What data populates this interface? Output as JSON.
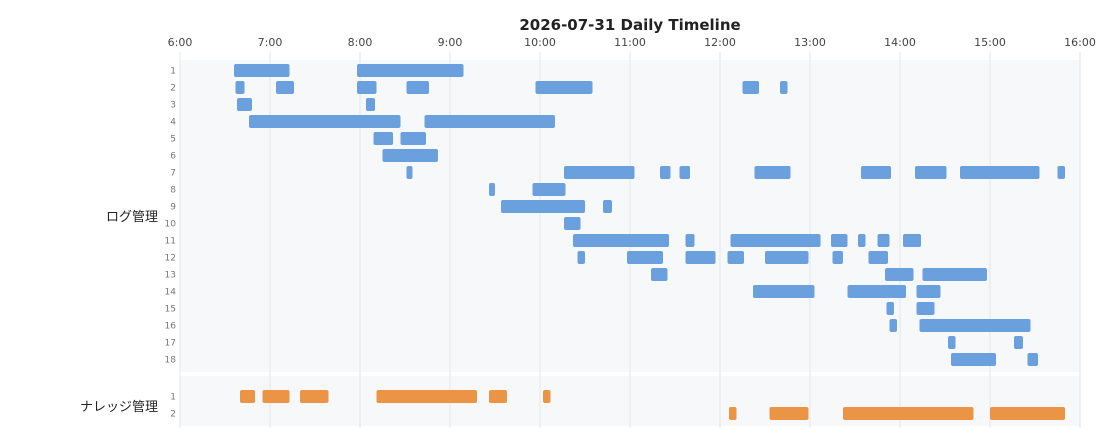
{
  "chart_data": {
    "type": "timeline",
    "title": "2026-07-31 Daily Timeline",
    "x_ticks": [
      "6:00",
      "7:00",
      "8:00",
      "9:00",
      "10:00",
      "11:00",
      "12:00",
      "13:00",
      "14:00",
      "15:00",
      "16:00"
    ],
    "x_range": [
      "6:00",
      "16:00"
    ],
    "colors": {
      "ログ管理": "#6aa0dd",
      "ナレッジ管理": "#ec9446"
    },
    "groups": [
      {
        "name": "ログ管理",
        "rows": [
          {
            "label": "1",
            "tasks": [
              [
                "6:36",
                "7:13"
              ],
              [
                "7:58",
                "9:09"
              ]
            ]
          },
          {
            "label": "2",
            "tasks": [
              [
                "6:37",
                "6:43"
              ],
              [
                "7:04",
                "7:16"
              ],
              [
                "7:58",
                "8:11"
              ],
              [
                "8:31",
                "8:46"
              ],
              [
                "9:57",
                "10:35"
              ],
              [
                "12:15",
                "12:26"
              ],
              [
                "12:40",
                "12:45"
              ]
            ]
          },
          {
            "label": "3",
            "tasks": [
              [
                "6:38",
                "6:48"
              ],
              [
                "8:04",
                "8:10"
              ]
            ]
          },
          {
            "label": "4",
            "tasks": [
              [
                "6:46",
                "8:27"
              ],
              [
                "8:43",
                "10:10"
              ]
            ]
          },
          {
            "label": "5",
            "tasks": [
              [
                "8:09",
                "8:22"
              ],
              [
                "8:27",
                "8:44"
              ]
            ]
          },
          {
            "label": "6",
            "tasks": [
              [
                "8:15",
                "8:52"
              ]
            ]
          },
          {
            "label": "7",
            "tasks": [
              [
                "8:31",
                "8:35"
              ],
              [
                "10:16",
                "11:03"
              ],
              [
                "11:20",
                "11:27"
              ],
              [
                "11:33",
                "11:40"
              ],
              [
                "12:23",
                "12:47"
              ],
              [
                "13:34",
                "13:54"
              ],
              [
                "14:10",
                "14:31"
              ],
              [
                "14:40",
                "15:33"
              ],
              [
                "15:45",
                "15:50"
              ]
            ]
          },
          {
            "label": "8",
            "tasks": [
              [
                "9:26",
                "9:30"
              ],
              [
                "9:55",
                "10:17"
              ]
            ]
          },
          {
            "label": "9",
            "tasks": [
              [
                "9:34",
                "10:30"
              ],
              [
                "10:42",
                "10:48"
              ]
            ]
          },
          {
            "label": "10",
            "tasks": [
              [
                "10:16",
                "10:27"
              ]
            ]
          },
          {
            "label": "11",
            "tasks": [
              [
                "10:22",
                "11:26"
              ],
              [
                "11:37",
                "11:43"
              ],
              [
                "12:07",
                "13:07"
              ],
              [
                "13:14",
                "13:25"
              ],
              [
                "13:32",
                "13:37"
              ],
              [
                "13:45",
                "13:53"
              ],
              [
                "14:02",
                "14:14"
              ]
            ]
          },
          {
            "label": "12",
            "tasks": [
              [
                "10:25",
                "10:30"
              ],
              [
                "10:58",
                "11:22"
              ],
              [
                "11:37",
                "11:57"
              ],
              [
                "12:05",
                "12:16"
              ],
              [
                "12:30",
                "12:59"
              ],
              [
                "13:15",
                "13:22"
              ],
              [
                "13:39",
                "13:52"
              ]
            ]
          },
          {
            "label": "13",
            "tasks": [
              [
                "11:14",
                "11:25"
              ],
              [
                "13:50",
                "14:09"
              ],
              [
                "14:15",
                "14:58"
              ]
            ]
          },
          {
            "label": "14",
            "tasks": [
              [
                "12:22",
                "13:03"
              ],
              [
                "13:25",
                "14:04"
              ],
              [
                "14:11",
                "14:27"
              ]
            ]
          },
          {
            "label": "15",
            "tasks": [
              [
                "13:51",
                "13:56"
              ],
              [
                "14:11",
                "14:23"
              ]
            ]
          },
          {
            "label": "16",
            "tasks": [
              [
                "13:53",
                "13:58"
              ],
              [
                "14:13",
                "15:27"
              ]
            ]
          },
          {
            "label": "17",
            "tasks": [
              [
                "14:32",
                "14:37"
              ],
              [
                "15:16",
                "15:22"
              ]
            ]
          },
          {
            "label": "18",
            "tasks": [
              [
                "14:34",
                "15:04"
              ],
              [
                "15:25",
                "15:32"
              ]
            ]
          }
        ]
      },
      {
        "name": "ナレッジ管理",
        "rows": [
          {
            "label": "1",
            "tasks": [
              [
                "6:40",
                "6:50"
              ],
              [
                "6:55",
                "7:13"
              ],
              [
                "7:20",
                "7:39"
              ],
              [
                "8:11",
                "9:18"
              ],
              [
                "9:26",
                "9:38"
              ],
              [
                "10:02",
                "10:07"
              ]
            ]
          },
          {
            "label": "2",
            "tasks": [
              [
                "12:06",
                "12:11"
              ],
              [
                "12:33",
                "12:59"
              ],
              [
                "13:22",
                "14:49"
              ],
              [
                "15:00",
                "15:50"
              ]
            ]
          }
        ]
      }
    ]
  }
}
